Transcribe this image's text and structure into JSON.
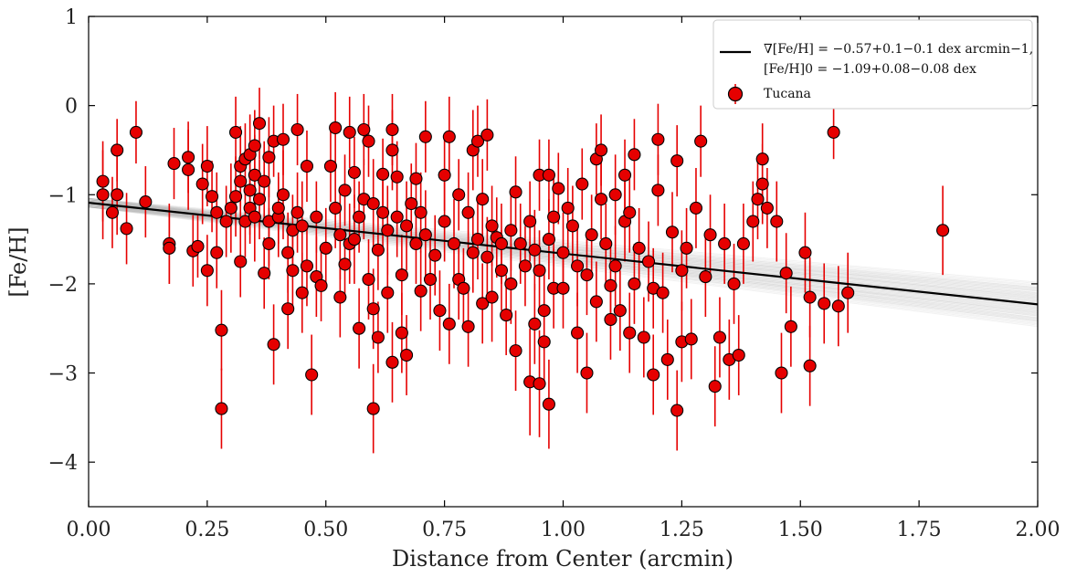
{
  "chart_data": {
    "type": "scatter",
    "xlabel": "Distance from Center (arcmin)",
    "ylabel": "[Fe/H]",
    "xlim": [
      0.0,
      2.0
    ],
    "ylim": [
      -4.5,
      1.0
    ],
    "x_ticks": [
      "0.00",
      "0.25",
      "0.50",
      "0.75",
      "1.00",
      "1.25",
      "1.50",
      "1.75",
      "2.00"
    ],
    "y_ticks": [
      "1",
      "0",
      "−1",
      "−2",
      "−3",
      "−4"
    ],
    "legend_position": "top-right",
    "fit": {
      "label_gradient": "∇[Fe/H] = −0.57+0.1−0.1 dex arcmin−1,",
      "label_intercept": "[Fe/H]0 = −1.09+0.08−0.08 dex",
      "slope": -0.57,
      "slope_err": 0.1,
      "intercept": -1.09,
      "intercept_err": 0.08,
      "color": "#000000",
      "sample_color": "#888888"
    },
    "series": [
      {
        "name": "Tucana",
        "color": "#e60000",
        "edge_color": "#000000",
        "points": [
          [
            0.03,
            -0.85,
            0.45
          ],
          [
            0.03,
            -1.0,
            0.5
          ],
          [
            0.05,
            -1.2,
            0.4
          ],
          [
            0.06,
            -0.5,
            0.35
          ],
          [
            0.06,
            -1.0,
            0.45
          ],
          [
            0.08,
            -1.38,
            0.4
          ],
          [
            0.1,
            -0.3,
            0.35
          ],
          [
            0.12,
            -1.08,
            0.4
          ],
          [
            0.17,
            -1.55,
            0.45
          ],
          [
            0.17,
            -1.6,
            0.4
          ],
          [
            0.18,
            -0.65,
            0.4
          ],
          [
            0.21,
            -0.58,
            0.4
          ],
          [
            0.21,
            -0.72,
            0.45
          ],
          [
            0.22,
            -1.63,
            0.4
          ],
          [
            0.23,
            -1.58,
            0.35
          ],
          [
            0.24,
            -0.88,
            0.45
          ],
          [
            0.25,
            -1.85,
            0.4
          ],
          [
            0.25,
            -0.68,
            0.45
          ],
          [
            0.26,
            -1.02,
            0.4
          ],
          [
            0.27,
            -1.2,
            0.45
          ],
          [
            0.27,
            -1.65,
            0.4
          ],
          [
            0.28,
            -2.52,
            0.45
          ],
          [
            0.28,
            -3.4,
            0.45
          ],
          [
            0.29,
            -1.3,
            0.4
          ],
          [
            0.3,
            -1.15,
            0.5
          ],
          [
            0.31,
            -0.3,
            0.4
          ],
          [
            0.31,
            -1.02,
            0.45
          ],
          [
            0.32,
            -0.85,
            0.5
          ],
          [
            0.32,
            -0.68,
            0.45
          ],
          [
            0.32,
            -1.75,
            0.4
          ],
          [
            0.33,
            -0.6,
            0.4
          ],
          [
            0.33,
            -1.3,
            0.4
          ],
          [
            0.34,
            -0.95,
            0.5
          ],
          [
            0.34,
            -0.55,
            0.45
          ],
          [
            0.34,
            -1.15,
            0.4
          ],
          [
            0.35,
            -0.45,
            0.4
          ],
          [
            0.35,
            -0.78,
            0.45
          ],
          [
            0.35,
            -1.25,
            0.5
          ],
          [
            0.36,
            -0.2,
            0.4
          ],
          [
            0.36,
            -1.05,
            0.45
          ],
          [
            0.37,
            -1.88,
            0.4
          ],
          [
            0.37,
            -0.85,
            0.45
          ],
          [
            0.38,
            -1.3,
            0.5
          ],
          [
            0.38,
            -1.55,
            0.4
          ],
          [
            0.38,
            -0.58,
            0.45
          ],
          [
            0.39,
            -0.4,
            0.4
          ],
          [
            0.39,
            -2.68,
            0.45
          ],
          [
            0.4,
            -1.25,
            0.45
          ],
          [
            0.4,
            -1.15,
            0.4
          ],
          [
            0.41,
            -1.0,
            0.5
          ],
          [
            0.41,
            -0.38,
            0.4
          ],
          [
            0.42,
            -1.65,
            0.45
          ],
          [
            0.42,
            -2.28,
            0.45
          ],
          [
            0.43,
            -1.85,
            0.45
          ],
          [
            0.43,
            -1.4,
            0.4
          ],
          [
            0.44,
            -0.27,
            0.4
          ],
          [
            0.44,
            -1.2,
            0.45
          ],
          [
            0.45,
            -1.35,
            0.5
          ],
          [
            0.45,
            -2.1,
            0.45
          ],
          [
            0.46,
            -0.68,
            0.4
          ],
          [
            0.46,
            -1.8,
            0.45
          ],
          [
            0.47,
            -3.02,
            0.45
          ],
          [
            0.48,
            -1.25,
            0.4
          ],
          [
            0.48,
            -1.92,
            0.45
          ],
          [
            0.49,
            -2.02,
            0.4
          ],
          [
            0.5,
            -1.6,
            0.45
          ],
          [
            0.51,
            -0.68,
            0.4
          ],
          [
            0.52,
            -0.25,
            0.4
          ],
          [
            0.52,
            -1.15,
            0.45
          ],
          [
            0.53,
            -1.45,
            0.5
          ],
          [
            0.53,
            -2.15,
            0.45
          ],
          [
            0.54,
            -0.95,
            0.4
          ],
          [
            0.54,
            -1.78,
            0.4
          ],
          [
            0.55,
            -0.3,
            0.4
          ],
          [
            0.55,
            -1.55,
            0.45
          ],
          [
            0.56,
            -0.75,
            0.4
          ],
          [
            0.56,
            -1.5,
            0.5
          ],
          [
            0.57,
            -2.5,
            0.45
          ],
          [
            0.57,
            -1.25,
            0.4
          ],
          [
            0.58,
            -1.05,
            0.45
          ],
          [
            0.58,
            -0.27,
            0.4
          ],
          [
            0.59,
            -1.95,
            0.45
          ],
          [
            0.59,
            -0.4,
            0.4
          ],
          [
            0.6,
            -1.1,
            0.5
          ],
          [
            0.6,
            -3.4,
            0.5
          ],
          [
            0.6,
            -2.28,
            0.45
          ],
          [
            0.61,
            -1.62,
            0.45
          ],
          [
            0.61,
            -2.6,
            0.4
          ],
          [
            0.62,
            -0.77,
            0.4
          ],
          [
            0.62,
            -1.2,
            0.45
          ],
          [
            0.63,
            -2.1,
            0.45
          ],
          [
            0.63,
            -1.4,
            0.5
          ],
          [
            0.64,
            -0.27,
            0.4
          ],
          [
            0.64,
            -0.5,
            0.45
          ],
          [
            0.64,
            -2.88,
            0.45
          ],
          [
            0.65,
            -1.25,
            0.45
          ],
          [
            0.65,
            -0.8,
            0.4
          ],
          [
            0.66,
            -1.9,
            0.45
          ],
          [
            0.66,
            -2.55,
            0.45
          ],
          [
            0.67,
            -1.35,
            0.5
          ],
          [
            0.67,
            -2.8,
            0.45
          ],
          [
            0.68,
            -1.1,
            0.45
          ],
          [
            0.69,
            -1.55,
            0.45
          ],
          [
            0.69,
            -0.82,
            0.4
          ],
          [
            0.7,
            -2.08,
            0.45
          ],
          [
            0.7,
            -1.2,
            0.45
          ],
          [
            0.71,
            -0.35,
            0.4
          ],
          [
            0.71,
            -1.45,
            0.5
          ],
          [
            0.72,
            -1.95,
            0.45
          ],
          [
            0.73,
            -1.68,
            0.45
          ],
          [
            0.74,
            -2.3,
            0.45
          ],
          [
            0.75,
            -0.78,
            0.4
          ],
          [
            0.75,
            -1.3,
            0.45
          ],
          [
            0.76,
            -0.35,
            0.45
          ],
          [
            0.76,
            -2.45,
            0.45
          ],
          [
            0.77,
            -1.55,
            0.5
          ],
          [
            0.78,
            -1.0,
            0.4
          ],
          [
            0.78,
            -1.95,
            0.45
          ],
          [
            0.79,
            -2.05,
            0.45
          ],
          [
            0.8,
            -1.2,
            0.45
          ],
          [
            0.8,
            -2.48,
            0.45
          ],
          [
            0.81,
            -0.5,
            0.45
          ],
          [
            0.81,
            -1.65,
            0.45
          ],
          [
            0.82,
            -1.5,
            0.45
          ],
          [
            0.82,
            -0.4,
            0.4
          ],
          [
            0.83,
            -2.22,
            0.45
          ],
          [
            0.83,
            -1.05,
            0.45
          ],
          [
            0.84,
            -0.33,
            0.4
          ],
          [
            0.84,
            -1.7,
            0.45
          ],
          [
            0.85,
            -1.35,
            0.45
          ],
          [
            0.85,
            -2.15,
            0.5
          ],
          [
            0.86,
            -1.48,
            0.45
          ],
          [
            0.87,
            -1.55,
            0.45
          ],
          [
            0.87,
            -1.85,
            0.45
          ],
          [
            0.88,
            -2.35,
            0.45
          ],
          [
            0.89,
            -1.4,
            0.45
          ],
          [
            0.89,
            -2.0,
            0.45
          ],
          [
            0.9,
            -0.97,
            0.4
          ],
          [
            0.9,
            -2.75,
            0.45
          ],
          [
            0.91,
            -1.55,
            0.45
          ],
          [
            0.92,
            -1.8,
            0.45
          ],
          [
            0.93,
            -1.3,
            0.45
          ],
          [
            0.93,
            -3.1,
            0.6
          ],
          [
            0.94,
            -1.62,
            0.45
          ],
          [
            0.94,
            -2.45,
            0.45
          ],
          [
            0.95,
            -0.78,
            0.4
          ],
          [
            0.95,
            -3.12,
            0.6
          ],
          [
            0.95,
            -1.85,
            0.45
          ],
          [
            0.96,
            -2.3,
            0.45
          ],
          [
            0.96,
            -2.65,
            0.45
          ],
          [
            0.97,
            -0.78,
            0.4
          ],
          [
            0.97,
            -1.5,
            0.45
          ],
          [
            0.97,
            -3.35,
            0.5
          ],
          [
            0.98,
            -2.05,
            0.45
          ],
          [
            0.98,
            -1.25,
            0.45
          ],
          [
            0.99,
            -0.93,
            0.4
          ],
          [
            1.0,
            -1.65,
            0.45
          ],
          [
            1.0,
            -2.05,
            0.45
          ],
          [
            1.01,
            -1.15,
            0.45
          ],
          [
            1.02,
            -1.35,
            0.45
          ],
          [
            1.03,
            -1.8,
            0.45
          ],
          [
            1.03,
            -2.55,
            0.45
          ],
          [
            1.04,
            -0.88,
            0.4
          ],
          [
            1.05,
            -1.9,
            0.45
          ],
          [
            1.05,
            -3.0,
            0.45
          ],
          [
            1.06,
            -1.45,
            0.45
          ],
          [
            1.07,
            -2.2,
            0.45
          ],
          [
            1.07,
            -0.6,
            0.4
          ],
          [
            1.08,
            -0.5,
            0.4
          ],
          [
            1.08,
            -1.05,
            0.45
          ],
          [
            1.09,
            -1.55,
            0.45
          ],
          [
            1.1,
            -2.02,
            0.45
          ],
          [
            1.1,
            -2.4,
            0.45
          ],
          [
            1.11,
            -1.0,
            0.45
          ],
          [
            1.11,
            -1.8,
            0.45
          ],
          [
            1.12,
            -2.3,
            0.45
          ],
          [
            1.13,
            -1.3,
            0.45
          ],
          [
            1.13,
            -0.78,
            0.4
          ],
          [
            1.14,
            -2.55,
            0.45
          ],
          [
            1.14,
            -1.2,
            0.45
          ],
          [
            1.15,
            -0.55,
            0.4
          ],
          [
            1.15,
            -2.0,
            0.45
          ],
          [
            1.16,
            -1.6,
            0.45
          ],
          [
            1.17,
            -2.6,
            0.45
          ],
          [
            1.18,
            -1.75,
            0.45
          ],
          [
            1.19,
            -2.05,
            0.45
          ],
          [
            1.19,
            -3.02,
            0.45
          ],
          [
            1.2,
            -0.38,
            0.4
          ],
          [
            1.2,
            -0.95,
            0.4
          ],
          [
            1.21,
            -2.1,
            0.45
          ],
          [
            1.22,
            -2.85,
            0.45
          ],
          [
            1.23,
            -1.42,
            0.45
          ],
          [
            1.24,
            -0.62,
            0.4
          ],
          [
            1.24,
            -3.42,
            0.45
          ],
          [
            1.25,
            -2.65,
            0.45
          ],
          [
            1.25,
            -1.85,
            0.45
          ],
          [
            1.26,
            -1.6,
            0.45
          ],
          [
            1.27,
            -2.62,
            0.45
          ],
          [
            1.28,
            -1.15,
            0.45
          ],
          [
            1.29,
            -0.4,
            0.4
          ],
          [
            1.3,
            -1.92,
            0.45
          ],
          [
            1.31,
            -1.45,
            0.45
          ],
          [
            1.32,
            -3.15,
            0.45
          ],
          [
            1.33,
            -2.6,
            0.45
          ],
          [
            1.34,
            -1.55,
            0.45
          ],
          [
            1.35,
            -2.85,
            0.45
          ],
          [
            1.36,
            -2.0,
            0.45
          ],
          [
            1.37,
            -2.8,
            0.45
          ],
          [
            1.38,
            -1.55,
            0.45
          ],
          [
            1.4,
            -1.3,
            0.45
          ],
          [
            1.41,
            -1.05,
            0.45
          ],
          [
            1.42,
            -0.6,
            0.4
          ],
          [
            1.42,
            -0.88,
            0.45
          ],
          [
            1.43,
            -1.15,
            0.45
          ],
          [
            1.45,
            -1.3,
            0.45
          ],
          [
            1.46,
            -3.0,
            0.45
          ],
          [
            1.47,
            -1.88,
            0.45
          ],
          [
            1.48,
            -2.48,
            0.45
          ],
          [
            1.51,
            -1.65,
            0.45
          ],
          [
            1.52,
            -2.15,
            0.45
          ],
          [
            1.52,
            -2.92,
            0.45
          ],
          [
            1.55,
            -2.22,
            0.45
          ],
          [
            1.57,
            -0.3,
            0.3
          ],
          [
            1.58,
            -2.25,
            0.45
          ],
          [
            1.6,
            -2.1,
            0.45
          ],
          [
            1.8,
            -1.4,
            0.5
          ]
        ]
      }
    ]
  }
}
